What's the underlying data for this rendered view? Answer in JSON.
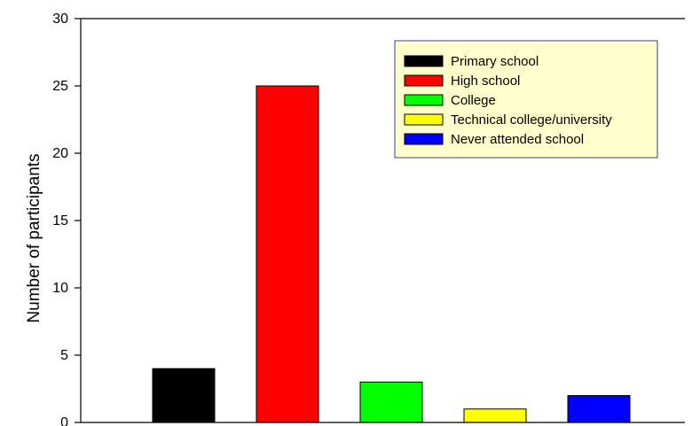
{
  "chart_data": {
    "type": "bar",
    "title": "",
    "xlabel": "",
    "ylabel": "Number of participants",
    "ylim": [
      0,
      30
    ],
    "yticks": [
      0,
      5,
      10,
      15,
      20,
      25,
      30
    ],
    "grid": false,
    "legend_position": "top-right",
    "categories": [
      "Primary school",
      "High school",
      "College",
      "Technical college/university",
      "Never attended school"
    ],
    "values": [
      4,
      25,
      3,
      1,
      2
    ],
    "colors": [
      "#000000",
      "#ff0000",
      "#00ff00",
      "#ffff00",
      "#0000ff"
    ]
  },
  "legend_style": {
    "background": "#ffffcc",
    "border": "#3c3c8c"
  }
}
